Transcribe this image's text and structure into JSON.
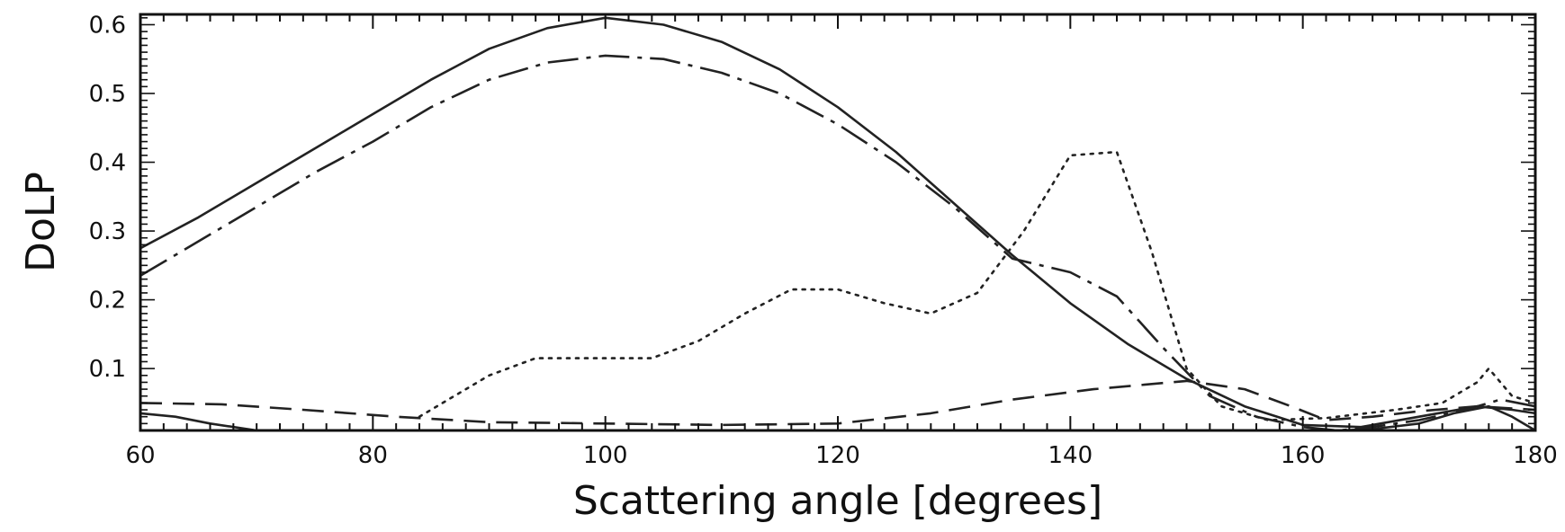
{
  "chart_data": {
    "type": "line",
    "title": "",
    "xlabel": "Scattering angle [degrees]",
    "ylabel": "DoLP",
    "xlim": [
      60,
      180
    ],
    "ylim": [
      0.01,
      0.615
    ],
    "xticks": [
      60,
      80,
      100,
      120,
      140,
      160,
      180
    ],
    "yticks": [
      0.1,
      0.2,
      0.3,
      0.4,
      0.5,
      0.6
    ],
    "grid": false,
    "legend": "none",
    "series": [
      {
        "style": "solid",
        "points": [
          [
            60,
            0.035
          ],
          [
            63,
            0.03
          ],
          [
            66,
            0.02
          ],
          [
            70,
            0.01
          ],
          [
            75,
            0.005
          ],
          [
            80,
            0.0
          ],
          [
            100,
            0.0
          ],
          [
            130,
            0.0
          ],
          [
            160,
            0.005
          ],
          [
            163,
            0.01
          ],
          [
            166,
            0.012
          ],
          [
            170,
            0.02
          ],
          [
            173,
            0.035
          ],
          [
            176,
            0.045
          ],
          [
            178,
            0.03
          ],
          [
            180,
            0.01
          ]
        ]
      },
      {
        "style": "solid",
        "points": [
          [
            60,
            0.275
          ],
          [
            65,
            0.32
          ],
          [
            70,
            0.37
          ],
          [
            75,
            0.42
          ],
          [
            80,
            0.47
          ],
          [
            85,
            0.52
          ],
          [
            90,
            0.565
          ],
          [
            95,
            0.595
          ],
          [
            100,
            0.61
          ],
          [
            105,
            0.6
          ],
          [
            110,
            0.575
          ],
          [
            115,
            0.535
          ],
          [
            120,
            0.48
          ],
          [
            125,
            0.415
          ],
          [
            130,
            0.34
          ],
          [
            135,
            0.265
          ],
          [
            140,
            0.195
          ],
          [
            145,
            0.135
          ],
          [
            150,
            0.085
          ],
          [
            155,
            0.045
          ],
          [
            160,
            0.018
          ],
          [
            165,
            0.015
          ],
          [
            170,
            0.03
          ],
          [
            175,
            0.045
          ],
          [
            178,
            0.04
          ],
          [
            180,
            0.035
          ]
        ]
      },
      {
        "style": "dashdot",
        "points": [
          [
            60,
            0.235
          ],
          [
            65,
            0.285
          ],
          [
            70,
            0.335
          ],
          [
            75,
            0.385
          ],
          [
            80,
            0.43
          ],
          [
            85,
            0.48
          ],
          [
            90,
            0.52
          ],
          [
            95,
            0.545
          ],
          [
            100,
            0.555
          ],
          [
            105,
            0.55
          ],
          [
            110,
            0.53
          ],
          [
            115,
            0.5
          ],
          [
            120,
            0.455
          ],
          [
            125,
            0.4
          ],
          [
            130,
            0.335
          ],
          [
            135,
            0.26
          ],
          [
            140,
            0.24
          ],
          [
            144,
            0.205
          ],
          [
            148,
            0.13
          ],
          [
            152,
            0.06
          ],
          [
            156,
            0.03
          ],
          [
            160,
            0.015
          ],
          [
            163,
            0.01
          ],
          [
            166,
            0.015
          ],
          [
            170,
            0.025
          ],
          [
            174,
            0.04
          ],
          [
            177,
            0.055
          ],
          [
            180,
            0.045
          ]
        ]
      },
      {
        "style": "dashed",
        "points": [
          [
            60,
            0.05
          ],
          [
            67,
            0.048
          ],
          [
            74,
            0.04
          ],
          [
            82,
            0.03
          ],
          [
            90,
            0.022
          ],
          [
            100,
            0.02
          ],
          [
            110,
            0.018
          ],
          [
            120,
            0.02
          ],
          [
            128,
            0.035
          ],
          [
            135,
            0.055
          ],
          [
            142,
            0.07
          ],
          [
            150,
            0.082
          ],
          [
            155,
            0.07
          ],
          [
            159,
            0.045
          ],
          [
            162,
            0.025
          ],
          [
            166,
            0.03
          ],
          [
            170,
            0.038
          ],
          [
            175,
            0.045
          ],
          [
            180,
            0.04
          ]
        ]
      },
      {
        "style": "dotted",
        "points": [
          [
            84,
            0.03
          ],
          [
            87,
            0.06
          ],
          [
            90,
            0.09
          ],
          [
            94,
            0.115
          ],
          [
            98,
            0.115
          ],
          [
            104,
            0.115
          ],
          [
            108,
            0.14
          ],
          [
            112,
            0.18
          ],
          [
            116,
            0.215
          ],
          [
            120,
            0.215
          ],
          [
            124,
            0.195
          ],
          [
            128,
            0.18
          ],
          [
            132,
            0.21
          ],
          [
            136,
            0.3
          ],
          [
            140,
            0.41
          ],
          [
            144,
            0.415
          ],
          [
            147,
            0.27
          ],
          [
            150,
            0.1
          ],
          [
            153,
            0.045
          ],
          [
            157,
            0.025
          ],
          [
            162,
            0.028
          ],
          [
            168,
            0.04
          ],
          [
            172,
            0.05
          ],
          [
            175,
            0.08
          ],
          [
            176,
            0.1
          ],
          [
            178,
            0.06
          ],
          [
            180,
            0.05
          ]
        ]
      }
    ]
  }
}
